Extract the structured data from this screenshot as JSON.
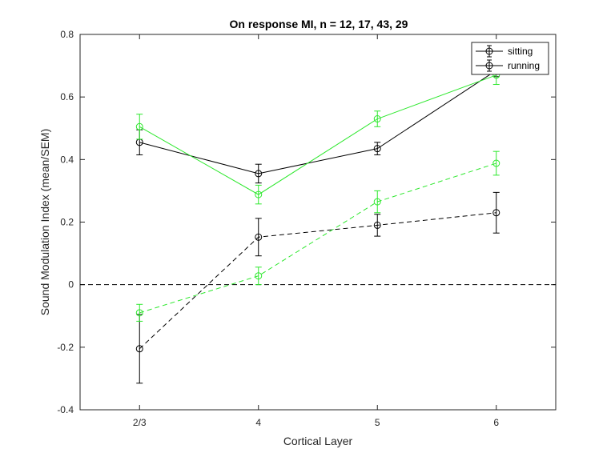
{
  "chart_data": {
    "type": "line",
    "title": "On response MI, n = 12, 17, 43, 29",
    "xlabel": "Cortical Layer",
    "ylabel": "Sound Modulation Index (mean/SEM)",
    "categories": [
      "2/3",
      "4",
      "5",
      "6"
    ],
    "xlim": [
      0.5,
      4.5
    ],
    "ylim": [
      -0.4,
      0.8
    ],
    "yticks": [
      -0.4,
      -0.2,
      0,
      0.2,
      0.4,
      0.6,
      0.8
    ],
    "ytick_labels": [
      "-0.4",
      "-0.2",
      "0",
      "0.2",
      "0.4",
      "0.6",
      "0.8"
    ],
    "reference_line": {
      "y": 0,
      "style": "dashed",
      "color": "#000000"
    },
    "grid": false,
    "legend": {
      "placement": "top-right",
      "entries": [
        "sitting",
        "running"
      ]
    },
    "series": [
      {
        "legend": "sitting",
        "condition": "sitting",
        "color": "#000000",
        "dash": false,
        "values": [
          0.455,
          0.355,
          0.435,
          0.685
        ],
        "err": [
          0.04,
          0.03,
          0.02,
          0.02
        ]
      },
      {
        "legend": "running",
        "condition": "running",
        "color": "#2ee82e",
        "dash": false,
        "values": [
          0.505,
          0.288,
          0.53,
          0.67
        ],
        "err": [
          0.04,
          0.03,
          0.025,
          0.03
        ]
      },
      {
        "legend": "",
        "condition": "sitting",
        "color": "#000000",
        "dash": true,
        "values": [
          -0.205,
          0.152,
          0.19,
          0.23
        ],
        "err": [
          0.11,
          0.06,
          0.035,
          0.065
        ]
      },
      {
        "legend": "",
        "condition": "running",
        "color": "#2ee82e",
        "dash": true,
        "values": [
          -0.09,
          0.028,
          0.265,
          0.388
        ],
        "err": [
          0.027,
          0.028,
          0.035,
          0.038
        ]
      }
    ]
  }
}
